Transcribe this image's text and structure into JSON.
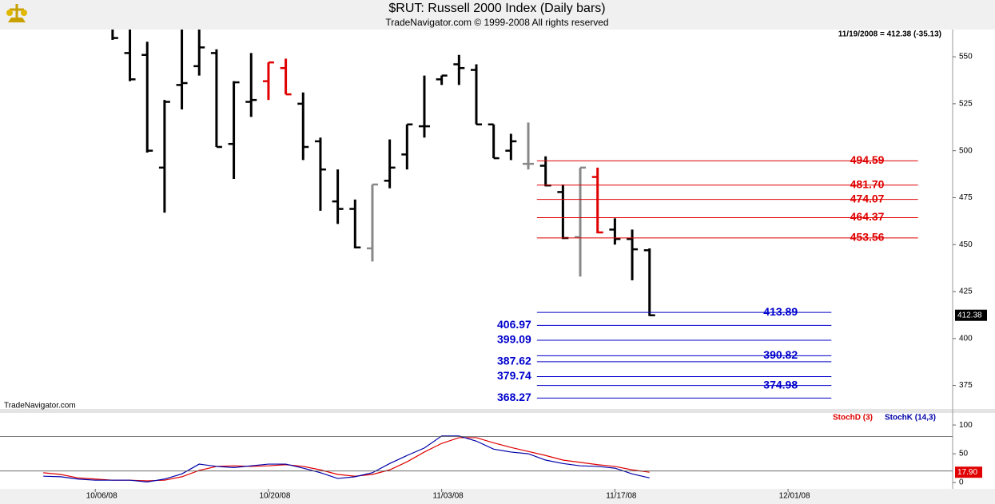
{
  "chart_data": {
    "type": "ohlc",
    "title": "$RUT:  Russell 2000 Index  (Daily bars)",
    "subtitle": "TradeNavigator.com © 1999-2008 All rights reserved",
    "quote": "11/19/2008 = 412.38 (-35.13)",
    "last_label": "412.38",
    "watermark": "TradeNavigator.com",
    "ylim": [
      362.5,
      564.5
    ],
    "yticks": [
      375,
      400,
      425,
      450,
      475,
      500,
      525,
      550
    ],
    "xlim": [
      -5.5,
      49.5
    ],
    "xticks": [
      {
        "value": 0,
        "label": "10/06/08"
      },
      {
        "value": 10,
        "label": "10/20/08"
      },
      {
        "value": 20,
        "label": "11/03/08"
      },
      {
        "value": 30,
        "label": "11/17/08"
      },
      {
        "value": 40,
        "label": "12/01/08"
      }
    ],
    "bars": {
      "x": [
        1,
        2,
        3,
        4,
        5,
        6,
        7,
        8,
        9,
        10,
        11,
        12,
        13,
        14,
        15,
        16,
        17,
        18,
        19,
        20,
        21,
        22,
        23,
        24,
        25,
        26,
        27,
        28,
        29,
        30,
        31,
        32
      ],
      "open": [
        568,
        552,
        551,
        491,
        535,
        545,
        552,
        503.6,
        526,
        537,
        544,
        525,
        505,
        473,
        469,
        448,
        484,
        498,
        513,
        538,
        546,
        543,
        514,
        500,
        493,
        492,
        478,
        454,
        486,
        458,
        453,
        447
      ],
      "high": [
        575,
        570,
        558,
        527,
        570,
        570,
        554,
        537,
        552,
        547,
        549,
        531,
        507,
        490,
        474,
        482,
        506,
        514,
        540,
        540,
        551,
        546,
        514,
        509,
        515,
        497,
        482,
        491,
        491,
        464,
        458,
        448
      ],
      "low": [
        559,
        537,
        499,
        467,
        522,
        540,
        502,
        485,
        518,
        527,
        530,
        495,
        468,
        461,
        448,
        441,
        480,
        490,
        507,
        535,
        535,
        514,
        496,
        495,
        490,
        481,
        453,
        433,
        456,
        450,
        431,
        412
      ],
      "close": [
        560,
        538,
        500,
        526,
        536,
        555,
        502,
        536.4,
        527,
        547,
        530,
        502,
        490,
        469,
        448.5,
        482,
        491,
        514,
        513,
        540,
        544,
        514,
        496,
        505,
        493,
        481.5,
        453.5,
        491,
        456.5,
        453,
        447.5,
        412.38
      ],
      "colors": [
        "#000000",
        "#000000",
        "#000000",
        "#000000",
        "#000000",
        "#000000",
        "#000000",
        "#000000",
        "#000000",
        "#e00000",
        "#e00000",
        "#000000",
        "#000000",
        "#000000",
        "#000000",
        "#888888",
        "#000000",
        "#000000",
        "#000000",
        "#000000",
        "#000000",
        "#000000",
        "#000000",
        "#000000",
        "#888888",
        "#000000",
        "#000000",
        "#888888",
        "#e00000",
        "#000000",
        "#000000",
        "#000000"
      ]
    },
    "retracements": {
      "color": "#e00000",
      "x_range": [
        25.5,
        47.5
      ],
      "levels": [
        494.59,
        481.7,
        474.07,
        464.37,
        453.56
      ],
      "value_labels": [
        "494.59",
        "481.70",
        "474.07",
        "464.37",
        "453.56"
      ],
      "sides": [
        "right",
        "right",
        "right",
        "right",
        "right"
      ]
    },
    "projections": {
      "color": "#0000cc",
      "x_range": [
        25.5,
        42.5
      ],
      "levels": [
        413.89,
        406.97,
        399.09,
        390.82,
        387.62,
        379.74,
        374.98,
        368.27
      ],
      "value_labels": [
        "413.89",
        "406.97",
        "399.09",
        "390.82",
        "387.62",
        "379.74",
        "374.98",
        "368.27"
      ],
      "sides": [
        "right",
        "left",
        "left",
        "right",
        "left",
        "left",
        "right",
        "left"
      ]
    },
    "indicator": {
      "type": "line",
      "ylim": [
        -11,
        121
      ],
      "yticks": [
        0,
        50,
        100
      ],
      "levels": [
        20,
        80
      ],
      "x": [
        -3,
        -2,
        -1,
        0,
        1,
        2,
        3,
        4,
        5,
        6,
        7,
        8,
        9,
        10,
        11,
        12,
        13,
        14,
        15,
        16,
        17,
        18,
        19,
        20,
        21,
        22,
        23,
        24,
        25,
        26,
        27,
        28,
        29,
        30,
        31,
        32
      ],
      "last_label": "17.90",
      "series": [
        {
          "name": "StochD (3)",
          "color": "#e00000",
          "values": [
            17,
            14,
            8,
            6,
            4,
            4,
            3,
            4,
            10,
            21,
            28,
            29,
            28,
            29,
            31,
            28,
            22,
            14,
            11,
            14,
            22,
            36,
            53,
            68,
            78,
            78,
            69,
            61,
            54,
            47,
            39,
            35,
            31,
            28,
            22,
            17.9
          ]
        },
        {
          "name": "StochK (14,3)",
          "color": "#0000aa",
          "values": [
            11,
            10,
            6,
            4,
            4,
            4,
            1,
            6,
            15,
            32,
            28,
            26,
            29,
            32,
            32,
            25,
            17,
            7,
            10,
            17,
            33,
            47,
            60,
            81,
            81,
            72,
            58,
            53,
            50,
            39,
            33,
            29,
            28,
            25,
            15,
            8
          ]
        }
      ]
    }
  }
}
